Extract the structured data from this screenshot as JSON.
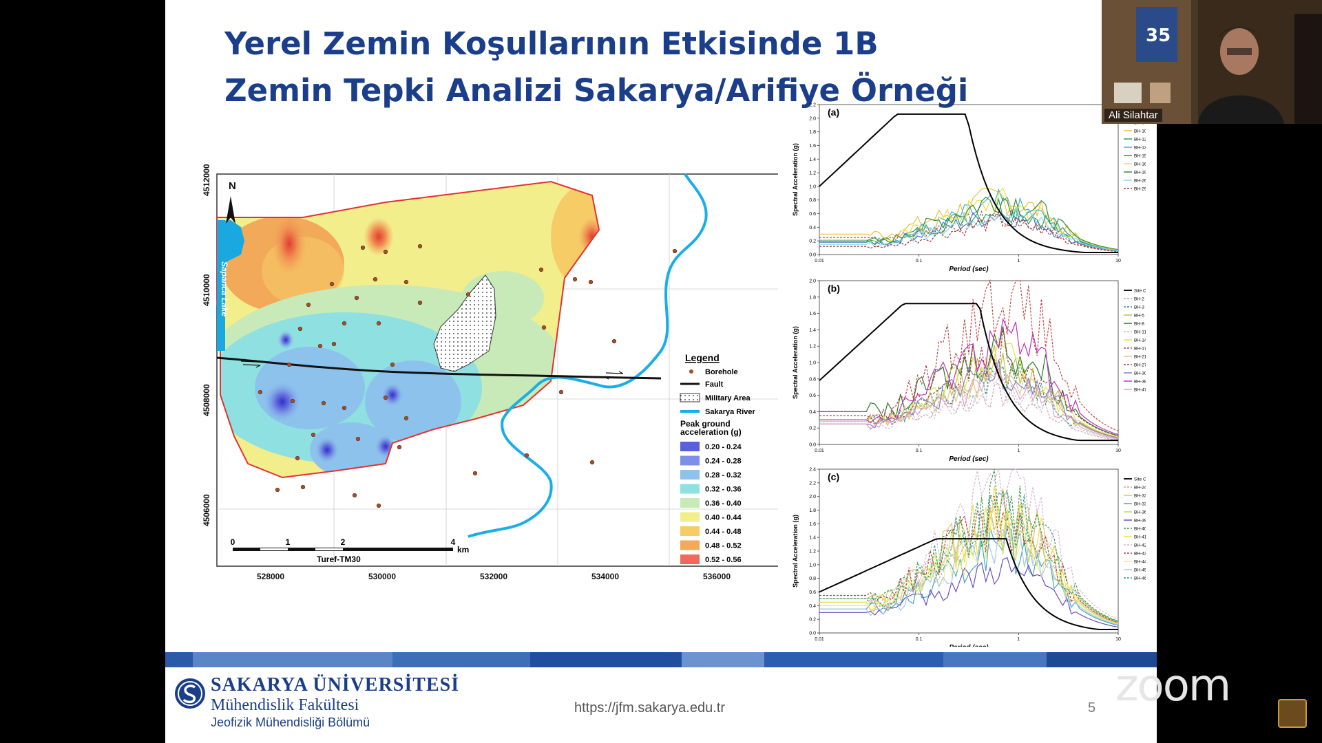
{
  "slide": {
    "title": "Yerel Zemin Koşullarının Etkisinde 1B Zemin Tepki Analizi Sakarya/Arifiye Örneği",
    "url": "https://jfm.sakarya.edu.tr",
    "page_number": "5"
  },
  "footer": {
    "university": "SAKARYA ÜNİVERSİTESİ",
    "faculty": "Mühendislik Fakültesi",
    "department": "Jeofizik Mühendisliği Bölümü",
    "bar_colors": [
      "#2a5aa8",
      "#5a86c8",
      "#3d6fb8",
      "#1f4f9e",
      "#6b93cf",
      "#2b5db0",
      "#4677c0",
      "#1d4a94"
    ]
  },
  "video": {
    "participant_name": "Ali Silahtar"
  },
  "zoom_watermark": "zoom",
  "map": {
    "north_label": "N",
    "lake_label": "Sapanca Lake",
    "y_ticks": [
      "4512000",
      "4510000",
      "4508000",
      "4506000"
    ],
    "x_ticks": [
      "528000",
      "530000",
      "532000",
      "534000",
      "536000"
    ],
    "scale_ticks": [
      "0",
      "1",
      "2",
      "4"
    ],
    "scale_unit": "km",
    "projection": "Turef-TM30",
    "legend": {
      "title": "Legend",
      "items": [
        "Borehole",
        "Fault",
        "Military Area",
        "Sakarya River"
      ],
      "pga_title_line1": "Peak ground",
      "pga_title_line2": "acceleration (g)",
      "pga_classes": [
        {
          "label": "0.20 - 0.24",
          "color": "#5a5ee0"
        },
        {
          "label": "0.24 - 0.28",
          "color": "#7d8fe8"
        },
        {
          "label": "0.28 - 0.32",
          "color": "#8dc2ec"
        },
        {
          "label": "0.32 - 0.36",
          "color": "#8fe0e0"
        },
        {
          "label": "0.36 - 0.40",
          "color": "#c8e9b8"
        },
        {
          "label": "0.40 - 0.44",
          "color": "#f2ee8c"
        },
        {
          "label": "0.44 - 0.48",
          "color": "#f5cc66"
        },
        {
          "label": "0.48 - 0.52",
          "color": "#f2a95a"
        },
        {
          "label": "0.52 - 0.56",
          "color": "#ef6a5c"
        }
      ]
    }
  },
  "chart_data": [
    {
      "type": "line",
      "panel": "(a)",
      "xlabel": "Period (sec)",
      "ylabel": "Spectral Acceleration (g)",
      "x_scale": "log",
      "xlim": [
        0.01,
        10
      ],
      "ylim": [
        0,
        2.2
      ],
      "x_ticks": [
        "0.01",
        "0.1",
        "1",
        "10"
      ],
      "y_ticks": [
        "0.0",
        "0.2",
        "0.4",
        "0.6",
        "0.8",
        "1.0",
        "1.2",
        "1.4",
        "1.6",
        "1.8",
        "2.0",
        "2.2"
      ],
      "design_spectrum": {
        "name": "",
        "x": [
          0.01,
          0.06,
          0.3,
          10
        ],
        "y": [
          1.0,
          2.06,
          2.06,
          0.03
        ]
      },
      "series": [
        {
          "name": "BH-6",
          "color": "#b05050",
          "dashed": true,
          "base": 0.25,
          "peak": 0.55
        },
        {
          "name": "BH-10",
          "color": "#e8c040",
          "dashed": false,
          "base": 0.3,
          "peak": 0.85
        },
        {
          "name": "BH-12",
          "color": "#2aa060",
          "dashed": false,
          "base": 0.2,
          "peak": 0.7
        },
        {
          "name": "BH-13",
          "color": "#40b0d0",
          "dashed": false,
          "base": 0.2,
          "peak": 0.75
        },
        {
          "name": "BH-15",
          "color": "#4a78c0",
          "dashed": false,
          "base": 0.18,
          "peak": 0.6
        },
        {
          "name": "BH-16",
          "color": "#f0e040",
          "dashed": false,
          "base": 0.22,
          "peak": 0.8
        },
        {
          "name": "BH-19",
          "color": "#3c8a3c",
          "dashed": false,
          "base": 0.2,
          "peak": 0.85
        },
        {
          "name": "BH-26",
          "color": "#88d8e8",
          "dashed": false,
          "base": 0.15,
          "peak": 0.65
        },
        {
          "name": "BH-29",
          "color": "#a03030",
          "dashed": true,
          "base": 0.12,
          "peak": 0.5
        }
      ]
    },
    {
      "type": "line",
      "panel": "(b)",
      "xlabel": "Period (sec)",
      "ylabel": "Spectral Acceleration (g)",
      "x_scale": "log",
      "xlim": [
        0.01,
        10
      ],
      "ylim": [
        0,
        2.0
      ],
      "x_ticks": [
        "0.01",
        "0.1",
        "1",
        "10"
      ],
      "y_ticks": [
        "0.0",
        "0.2",
        "0.4",
        "0.6",
        "0.8",
        "1.0",
        "1.2",
        "1.4",
        "1.6",
        "1.8",
        "2.0"
      ],
      "design_spectrum": {
        "name": "Site Class D",
        "x": [
          0.01,
          0.07,
          0.4,
          10
        ],
        "y": [
          0.78,
          1.72,
          1.72,
          0.05
        ]
      },
      "series": [
        {
          "name": "BH-2",
          "color": "#d0a0a0",
          "dashed": true,
          "base": 0.25,
          "peak": 0.6
        },
        {
          "name": "BH-3",
          "color": "#2a9a6a",
          "dashed": true,
          "base": 0.28,
          "peak": 0.9
        },
        {
          "name": "BH-5",
          "color": "#c0c040",
          "dashed": false,
          "base": 0.3,
          "peak": 1.0
        },
        {
          "name": "BH-8",
          "color": "#2a7a2a",
          "dashed": false,
          "base": 0.4,
          "peak": 1.25
        },
        {
          "name": "BH-11",
          "color": "#c8b8e0",
          "dashed": true,
          "base": 0.25,
          "peak": 0.7
        },
        {
          "name": "BH-14",
          "color": "#e8e050",
          "dashed": false,
          "base": 0.3,
          "peak": 1.05
        },
        {
          "name": "BH-17",
          "color": "#c04040",
          "dashed": true,
          "base": 0.35,
          "peak": 1.9
        },
        {
          "name": "BH-21",
          "color": "#e0c890",
          "dashed": false,
          "base": 0.28,
          "peak": 0.9
        },
        {
          "name": "BH-27",
          "color": "#a04040",
          "dashed": true,
          "base": 0.3,
          "peak": 1.2
        },
        {
          "name": "BH-30",
          "color": "#8080d0",
          "dashed": false,
          "base": 0.25,
          "peak": 0.95
        },
        {
          "name": "BH-38",
          "color": "#c030c0",
          "dashed": false,
          "base": 0.3,
          "peak": 1.4
        },
        {
          "name": "BH-47",
          "color": "#e0a0c0",
          "dashed": false,
          "base": 0.25,
          "peak": 0.8
        }
      ]
    },
    {
      "type": "line",
      "panel": "(c)",
      "xlabel": "Period (sec)",
      "ylabel": "Spectral Acceleration (g)",
      "x_scale": "log",
      "xlim": [
        0.01,
        10
      ],
      "ylim": [
        0,
        2.4
      ],
      "x_ticks": [
        "0.01",
        "0.1",
        "1",
        "10"
      ],
      "y_ticks": [
        "0.0",
        "0.2",
        "0.4",
        "0.6",
        "0.8",
        "1.0",
        "1.2",
        "1.4",
        "1.6",
        "1.8",
        "2.0",
        "2.2",
        "2.4"
      ],
      "design_spectrum": {
        "name": "Site Class E",
        "x": [
          0.01,
          0.15,
          0.75,
          10
        ],
        "y": [
          0.6,
          1.38,
          1.38,
          0.05
        ]
      },
      "series": [
        {
          "name": "BH-24",
          "color": "#d0a0a0",
          "dashed": true,
          "base": 0.4,
          "peak": 1.7
        },
        {
          "name": "BH-32",
          "color": "#e8c060",
          "dashed": false,
          "base": 0.45,
          "peak": 1.9
        },
        {
          "name": "BH-33",
          "color": "#40a8c0",
          "dashed": false,
          "base": 0.35,
          "peak": 1.3
        },
        {
          "name": "BH-36",
          "color": "#c0d870",
          "dashed": false,
          "base": 0.5,
          "peak": 1.6
        },
        {
          "name": "BH-39",
          "color": "#6a4ac8",
          "dashed": false,
          "base": 0.3,
          "peak": 1.0
        },
        {
          "name": "BH-40",
          "color": "#3a9a4a",
          "dashed": true,
          "base": 0.5,
          "peak": 2.0
        },
        {
          "name": "BH-41",
          "color": "#f0e050",
          "dashed": false,
          "base": 0.45,
          "peak": 1.8
        },
        {
          "name": "BH-42",
          "color": "#e0b0d0",
          "dashed": true,
          "base": 0.4,
          "peak": 2.3
        },
        {
          "name": "BH-43",
          "color": "#b04050",
          "dashed": true,
          "base": 0.55,
          "peak": 1.75
        },
        {
          "name": "BH-44",
          "color": "#f0f080",
          "dashed": false,
          "base": 0.4,
          "peak": 1.5
        },
        {
          "name": "BH-45",
          "color": "#a8c8e8",
          "dashed": false,
          "base": 0.35,
          "peak": 1.4
        },
        {
          "name": "BH-46",
          "color": "#2aa080",
          "dashed": true,
          "base": 0.5,
          "peak": 1.9
        }
      ]
    }
  ]
}
